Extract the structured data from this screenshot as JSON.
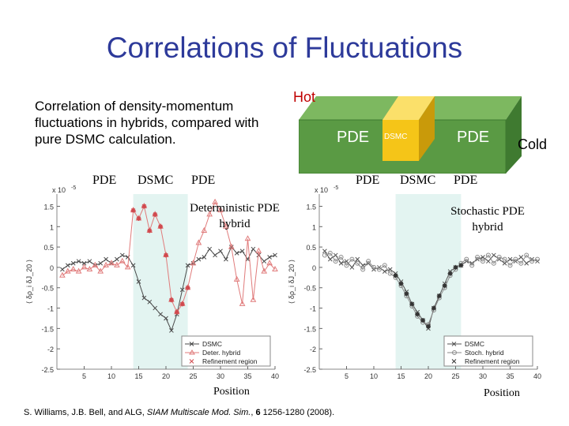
{
  "slide": {
    "title": "Correlations of Fluctuations",
    "description": "Correlation of density-momentum fluctuations in hybrids, compared with pure DSMC calculation.",
    "citation_authors": "S. Williams, J.B. Bell, and ALG, ",
    "citation_journal": "SIAM Multiscale Mod. Sim.",
    "citation_volume": "6",
    "citation_pages": " 1256-1280 (2008)."
  },
  "schematic": {
    "hot_label": "Hot",
    "cold_label": "Cold",
    "left_region": "PDE",
    "center_region": "DSMC",
    "right_region": "PDE"
  },
  "colors": {
    "title": "#2d3a9a",
    "box_green": "#5a9a44",
    "box_yellow": "#f5c518",
    "hot": "#c00000",
    "dsmc_band": "#e3f4f1",
    "deter": "#e07b7b",
    "dsmc_line": "#4a4a4a"
  },
  "chart_data": [
    {
      "type": "line",
      "panel": "left",
      "region_labels": [
        "PDE",
        "DSMC",
        "PDE"
      ],
      "annotation": "Deterministic PDE hybrid",
      "xlabel": "Position",
      "ylabel": "⟨ δρ_i δJ_20 ⟩",
      "y_scale_label": "x 10",
      "y_scale_exp": "-5",
      "xlim": [
        0,
        40
      ],
      "ylim": [
        -2.5,
        1.8
      ],
      "xticks": [
        5,
        10,
        15,
        20,
        25,
        30,
        35,
        40
      ],
      "yticks": [
        1.5,
        1,
        0.5,
        0,
        -0.5,
        -1,
        -1.5,
        -2,
        -2.5
      ],
      "dsmc_band": [
        14,
        24
      ],
      "legend": [
        "DSMC",
        "Deter. hybrid",
        "Refinement region"
      ],
      "series": [
        {
          "name": "DSMC",
          "x": [
            1,
            2,
            3,
            4,
            5,
            6,
            7,
            8,
            9,
            10,
            11,
            12,
            13,
            14,
            15,
            16,
            17,
            18,
            19,
            20,
            21,
            22,
            23,
            24,
            25,
            26,
            27,
            28,
            29,
            30,
            31,
            32,
            33,
            34,
            35,
            36,
            37,
            38,
            39,
            40
          ],
          "values": [
            -0.05,
            0.05,
            0.1,
            0.15,
            0.1,
            0.15,
            0.05,
            0.1,
            0.2,
            0.1,
            0.2,
            0.3,
            0.25,
            0.05,
            -0.35,
            -0.75,
            -0.85,
            -1.0,
            -1.15,
            -1.25,
            -1.55,
            -1.15,
            -0.55,
            0.05,
            0.1,
            0.2,
            0.25,
            0.45,
            0.3,
            0.4,
            0.2,
            0.5,
            0.35,
            0.4,
            0.2,
            0.45,
            0.3,
            0.15,
            0.25,
            0.3
          ]
        },
        {
          "name": "Deter. hybrid",
          "x": [
            1,
            2,
            3,
            4,
            5,
            6,
            7,
            8,
            9,
            10,
            11,
            12,
            13,
            14,
            15,
            16,
            17,
            18,
            19,
            20,
            21,
            22,
            23,
            24,
            25,
            26,
            27,
            28,
            29,
            30,
            31,
            32,
            33,
            34,
            35,
            36,
            37,
            38,
            39,
            40
          ],
          "values": [
            -0.2,
            -0.1,
            -0.05,
            -0.1,
            0.0,
            -0.05,
            0.05,
            -0.1,
            0.05,
            0.1,
            0.05,
            0.15,
            0.0,
            1.4,
            1.2,
            1.5,
            0.9,
            1.3,
            1.0,
            0.3,
            -0.8,
            -1.1,
            -0.9,
            -0.5,
            0.1,
            0.6,
            0.9,
            1.3,
            1.6,
            1.4,
            1.0,
            0.5,
            -0.3,
            -0.9,
            0.7,
            -0.8,
            0.4,
            -0.1,
            0.1,
            -0.05
          ]
        },
        {
          "name": "Refinement region",
          "x": [
            14,
            15,
            16,
            17,
            18,
            19,
            20,
            21,
            22,
            23,
            24
          ],
          "values": [
            1.4,
            1.2,
            1.5,
            0.9,
            1.3,
            1.0,
            0.3,
            -0.8,
            -1.1,
            -0.9,
            -0.5
          ]
        }
      ]
    },
    {
      "type": "line",
      "panel": "right",
      "region_labels": [
        "PDE",
        "DSMC",
        "PDE"
      ],
      "annotation": "Stochastic PDE hybrid",
      "xlabel": "Position",
      "ylabel": "⟨ δρ_i δJ_20 ⟩",
      "y_scale_label": "x 10",
      "y_scale_exp": "-5",
      "xlim": [
        0,
        40
      ],
      "ylim": [
        -2.5,
        1.8
      ],
      "xticks": [
        5,
        10,
        15,
        20,
        25,
        30,
        35,
        40
      ],
      "yticks": [
        1.5,
        1,
        0.5,
        0,
        -0.5,
        -1,
        -1.5,
        -2,
        -2.5
      ],
      "dsmc_band": [
        14,
        26
      ],
      "legend": [
        "DSMC",
        "Stoch. hybrid",
        "Refinement region"
      ],
      "series": [
        {
          "name": "DSMC",
          "x": [
            1,
            2,
            3,
            4,
            5,
            6,
            7,
            8,
            9,
            10,
            11,
            12,
            13,
            14,
            15,
            16,
            17,
            18,
            19,
            20,
            21,
            22,
            23,
            24,
            25,
            26,
            27,
            28,
            29,
            30,
            31,
            32,
            33,
            34,
            35,
            36,
            37,
            38,
            39,
            40
          ],
          "values": [
            0.4,
            0.2,
            0.3,
            0.1,
            0.15,
            0.0,
            0.2,
            0.05,
            0.1,
            -0.05,
            0.0,
            -0.1,
            -0.05,
            -0.15,
            -0.35,
            -0.6,
            -0.9,
            -1.1,
            -1.3,
            -1.5,
            -1.0,
            -0.7,
            -0.4,
            -0.1,
            0.0,
            0.05,
            0.15,
            0.1,
            0.2,
            0.25,
            0.15,
            0.3,
            0.2,
            0.1,
            0.2,
            0.15,
            0.25,
            0.1,
            0.2,
            0.15
          ]
        },
        {
          "name": "Stoch. hybrid",
          "x": [
            1,
            2,
            3,
            4,
            5,
            6,
            7,
            8,
            9,
            10,
            11,
            12,
            13,
            14,
            15,
            16,
            17,
            18,
            19,
            20,
            21,
            22,
            23,
            24,
            25,
            26,
            27,
            28,
            29,
            30,
            31,
            32,
            33,
            34,
            35,
            36,
            37,
            38,
            39,
            40
          ],
          "values": [
            0.3,
            0.35,
            0.15,
            0.25,
            0.05,
            0.2,
            0.1,
            -0.05,
            0.15,
            0.0,
            -0.05,
            0.05,
            -0.15,
            -0.25,
            -0.45,
            -0.7,
            -0.95,
            -1.2,
            -1.35,
            -1.4,
            -1.05,
            -0.75,
            -0.5,
            -0.2,
            -0.05,
            0.1,
            0.2,
            0.05,
            0.25,
            0.15,
            0.3,
            0.1,
            0.25,
            0.2,
            0.05,
            0.2,
            0.1,
            0.3,
            0.15,
            0.2
          ]
        },
        {
          "name": "Refinement region",
          "x": [
            14,
            15,
            16,
            17,
            18,
            19,
            20,
            21,
            22,
            23,
            24,
            25,
            26
          ],
          "values": [
            -0.2,
            -0.4,
            -0.65,
            -0.9,
            -1.15,
            -1.3,
            -1.45,
            -1.0,
            -0.7,
            -0.45,
            -0.15,
            0.0,
            0.05
          ]
        }
      ]
    }
  ]
}
